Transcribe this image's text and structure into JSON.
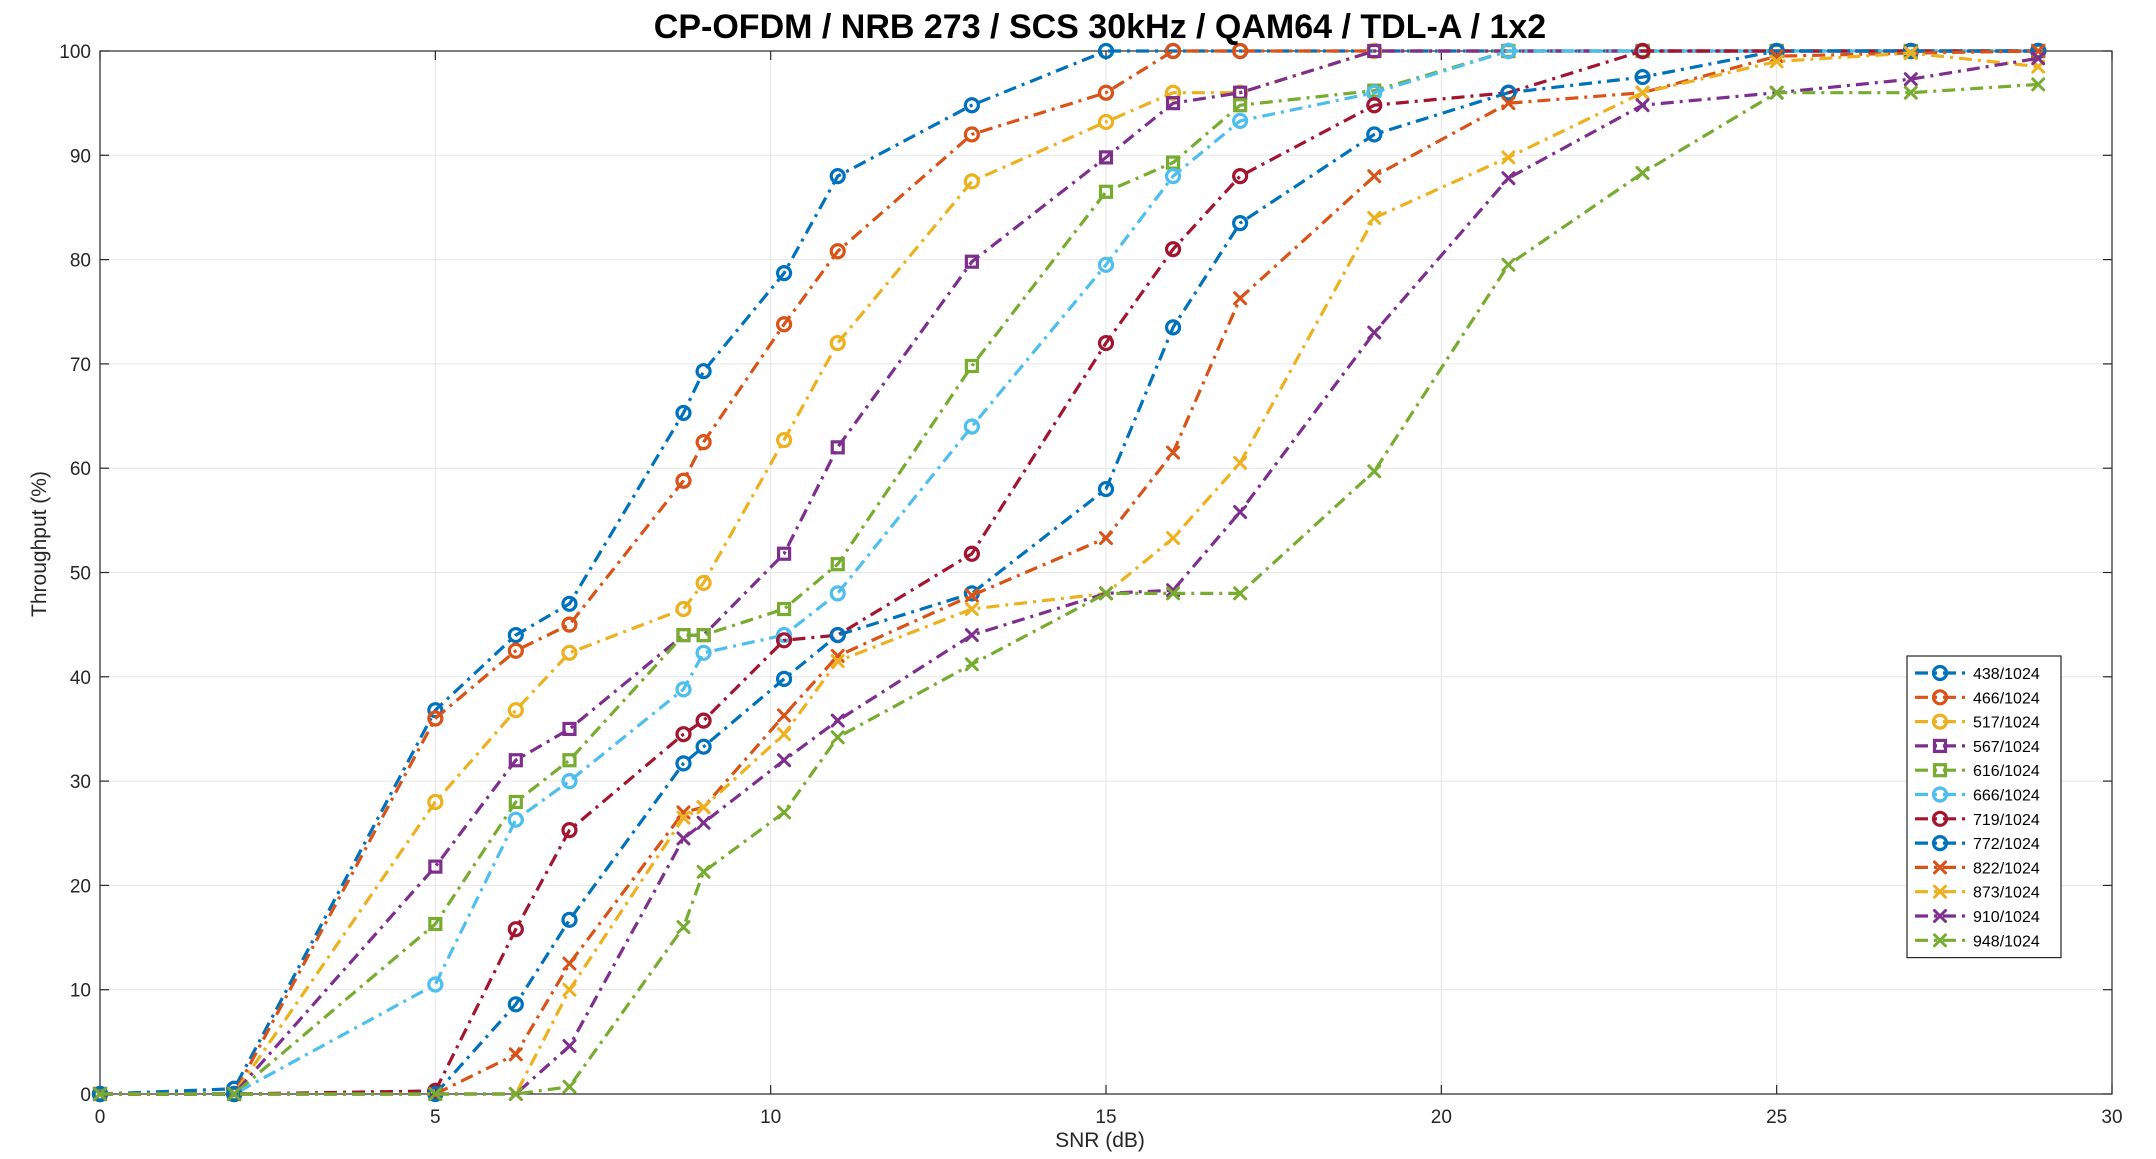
{
  "chart_data": {
    "type": "line",
    "title": "CP-OFDM / NRB 273 / SCS 30kHz / QAM64 / TDL-A / 1x2",
    "xlabel": "SNR (dB)",
    "ylabel": "Throughput (%)",
    "xlim": [
      0,
      30
    ],
    "ylim": [
      0,
      100
    ],
    "xticks": [
      0,
      5,
      10,
      15,
      20,
      25,
      30
    ],
    "yticks": [
      0,
      10,
      20,
      30,
      40,
      50,
      60,
      70,
      80,
      90,
      100
    ],
    "grid": true,
    "line_style": "dash-dot",
    "legend_position": "right",
    "series": [
      {
        "name": "438/1024",
        "color": "#0072BD",
        "marker": "circle",
        "x": [
          0,
          2,
          5,
          6.2,
          7,
          8.7,
          9,
          10.2,
          11,
          13,
          15,
          16,
          17,
          19,
          21,
          23,
          25,
          27,
          28.9
        ],
        "y": [
          0,
          0.5,
          36.8,
          44,
          47,
          65.3,
          69.3,
          78.7,
          88,
          94.8,
          100,
          100,
          100,
          100,
          100,
          100,
          100,
          100,
          100
        ]
      },
      {
        "name": "466/1024",
        "color": "#D95319",
        "marker": "circle",
        "x": [
          0,
          2,
          5,
          6.2,
          7,
          8.7,
          9,
          10.2,
          11,
          13,
          15,
          16,
          17,
          19,
          21,
          23,
          25,
          27,
          28.9
        ],
        "y": [
          0,
          0,
          36,
          42.5,
          45,
          58.8,
          62.5,
          73.8,
          80.8,
          92,
          96,
          100,
          100,
          100,
          100,
          100,
          100,
          100,
          100
        ]
      },
      {
        "name": "517/1024",
        "color": "#EDB120",
        "marker": "circle",
        "x": [
          0,
          2,
          5,
          6.2,
          7,
          8.7,
          9,
          10.2,
          11,
          13,
          15,
          16,
          17,
          19,
          21,
          23,
          25,
          27,
          28.9
        ],
        "y": [
          0,
          0,
          28,
          36.8,
          42.3,
          46.5,
          49,
          62.7,
          72,
          87.5,
          93.2,
          96,
          96,
          100,
          100,
          100,
          100,
          100,
          100
        ]
      },
      {
        "name": "567/1024",
        "color": "#7E2F8E",
        "marker": "square",
        "x": [
          0,
          2,
          5,
          6.2,
          7,
          8.7,
          9,
          10.2,
          11,
          13,
          15,
          16,
          17,
          19,
          21,
          23,
          25,
          27,
          28.9
        ],
        "y": [
          0,
          0,
          21.8,
          32,
          35,
          44,
          44,
          51.8,
          62,
          79.8,
          89.8,
          95,
          96,
          100,
          100,
          100,
          100,
          100,
          100
        ]
      },
      {
        "name": "616/1024",
        "color": "#77AC30",
        "marker": "square",
        "x": [
          0,
          2,
          5,
          6.2,
          7,
          8.7,
          9,
          10.2,
          11,
          13,
          15,
          16,
          17,
          19,
          21,
          23,
          25,
          27,
          28.9
        ],
        "y": [
          0,
          0,
          16.3,
          28,
          32,
          44,
          44,
          46.5,
          50.8,
          69.8,
          86.5,
          89.3,
          94.8,
          96.2,
          100,
          100,
          100,
          100,
          100
        ]
      },
      {
        "name": "666/1024",
        "color": "#4DBEEE",
        "marker": "circle",
        "x": [
          0,
          2,
          5,
          6.2,
          7,
          8.7,
          9,
          10.2,
          11,
          13,
          15,
          16,
          17,
          19,
          21,
          23,
          25,
          27,
          28.9
        ],
        "y": [
          0,
          0,
          10.5,
          26.3,
          30,
          38.8,
          42.3,
          44,
          48,
          64,
          79.5,
          88,
          93.3,
          96,
          100,
          100,
          100,
          100,
          100
        ]
      },
      {
        "name": "719/1024",
        "color": "#A2142F",
        "marker": "circle",
        "x": [
          0,
          2,
          5,
          6.2,
          7,
          8.7,
          9,
          10.2,
          11,
          13,
          15,
          16,
          17,
          19,
          21,
          23,
          25,
          27,
          28.9
        ],
        "y": [
          0,
          0,
          0.3,
          15.8,
          25.3,
          34.5,
          35.8,
          43.5,
          44,
          51.8,
          72,
          81,
          88,
          94.8,
          96,
          100,
          100,
          100,
          100
        ]
      },
      {
        "name": "772/1024",
        "color": "#0072BD",
        "marker": "circle",
        "x": [
          0,
          2,
          5,
          6.2,
          7,
          8.7,
          9,
          10.2,
          11,
          13,
          15,
          16,
          17,
          19,
          21,
          23,
          25,
          27,
          28.9
        ],
        "y": [
          0,
          0,
          0,
          8.6,
          16.7,
          31.7,
          33.3,
          39.8,
          44,
          48,
          58,
          73.5,
          83.5,
          92,
          96,
          97.5,
          100,
          100,
          100
        ]
      },
      {
        "name": "822/1024",
        "color": "#D95319",
        "marker": "x",
        "x": [
          0,
          2,
          5,
          6.2,
          7,
          8.7,
          9,
          10.2,
          11,
          13,
          15,
          16,
          17,
          19,
          21,
          23,
          25,
          27,
          28.9
        ],
        "y": [
          0,
          0,
          0,
          3.8,
          12.5,
          27,
          27.5,
          36.3,
          42,
          47.8,
          53.3,
          61.5,
          76.3,
          88,
          95,
          96,
          99.5,
          99.8,
          100
        ]
      },
      {
        "name": "873/1024",
        "color": "#EDB120",
        "marker": "x",
        "x": [
          0,
          2,
          5,
          6.2,
          7,
          8.7,
          9,
          10.2,
          11,
          13,
          15,
          16,
          17,
          19,
          21,
          23,
          25,
          27,
          28.9
        ],
        "y": [
          0,
          0,
          0,
          0,
          10,
          26.5,
          27.5,
          34.5,
          41.5,
          46.5,
          48,
          53.3,
          60.5,
          84,
          89.8,
          96,
          99,
          99.8,
          98.5
        ]
      },
      {
        "name": "910/1024",
        "color": "#7E2F8E",
        "marker": "x",
        "x": [
          0,
          2,
          5,
          6.2,
          7,
          8.7,
          9,
          10.2,
          11,
          13,
          15,
          16,
          17,
          19,
          21,
          23,
          25,
          27,
          28.9
        ],
        "y": [
          0,
          0,
          0,
          0,
          4.6,
          24.5,
          26,
          32,
          35.8,
          44,
          48,
          48.3,
          55.8,
          73,
          87.8,
          94.8,
          96,
          97.3,
          99.3
        ]
      },
      {
        "name": "948/1024",
        "color": "#77AC30",
        "marker": "x",
        "x": [
          0,
          2,
          5,
          6.2,
          7,
          8.7,
          9,
          10.2,
          11,
          13,
          15,
          16,
          17,
          19,
          21,
          23,
          25,
          27,
          28.9
        ],
        "y": [
          0,
          0,
          0,
          0,
          0.7,
          16,
          21.3,
          27,
          34.2,
          41.2,
          48,
          48,
          48,
          59.7,
          79.5,
          88.3,
          96,
          96,
          96.8
        ]
      }
    ]
  }
}
